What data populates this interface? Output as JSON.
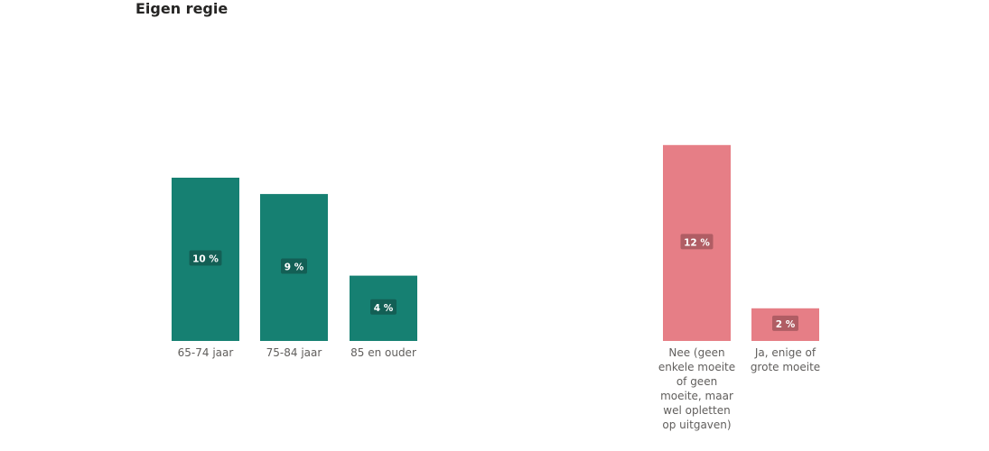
{
  "title": "Eigen regie",
  "chart_data": [
    {
      "type": "bar",
      "categories": [
        "65-74 jaar",
        "75-84 jaar",
        "85 en ouder"
      ],
      "values": [
        10,
        9,
        4
      ],
      "value_labels": [
        "10 %",
        "9 %",
        "4 %"
      ],
      "color": "#168072",
      "label_bg": "#135f55"
    },
    {
      "type": "bar",
      "categories": [
        "Nee (geen enkele moeite of geen moeite, maar wel opletten op uitgaven)",
        "Ja, enige of grote moeite"
      ],
      "category_lines": [
        [
          "Nee (geen",
          "enkele moeite",
          "of geen",
          "moeite, maar",
          "wel opletten",
          "op uitgaven)"
        ],
        [
          "Ja, enige of",
          "grote moeite"
        ]
      ],
      "values": [
        12,
        2
      ],
      "value_labels": [
        "12 %",
        "2 %"
      ],
      "color": "#e67e86",
      "label_bg": "#b05d64"
    }
  ]
}
